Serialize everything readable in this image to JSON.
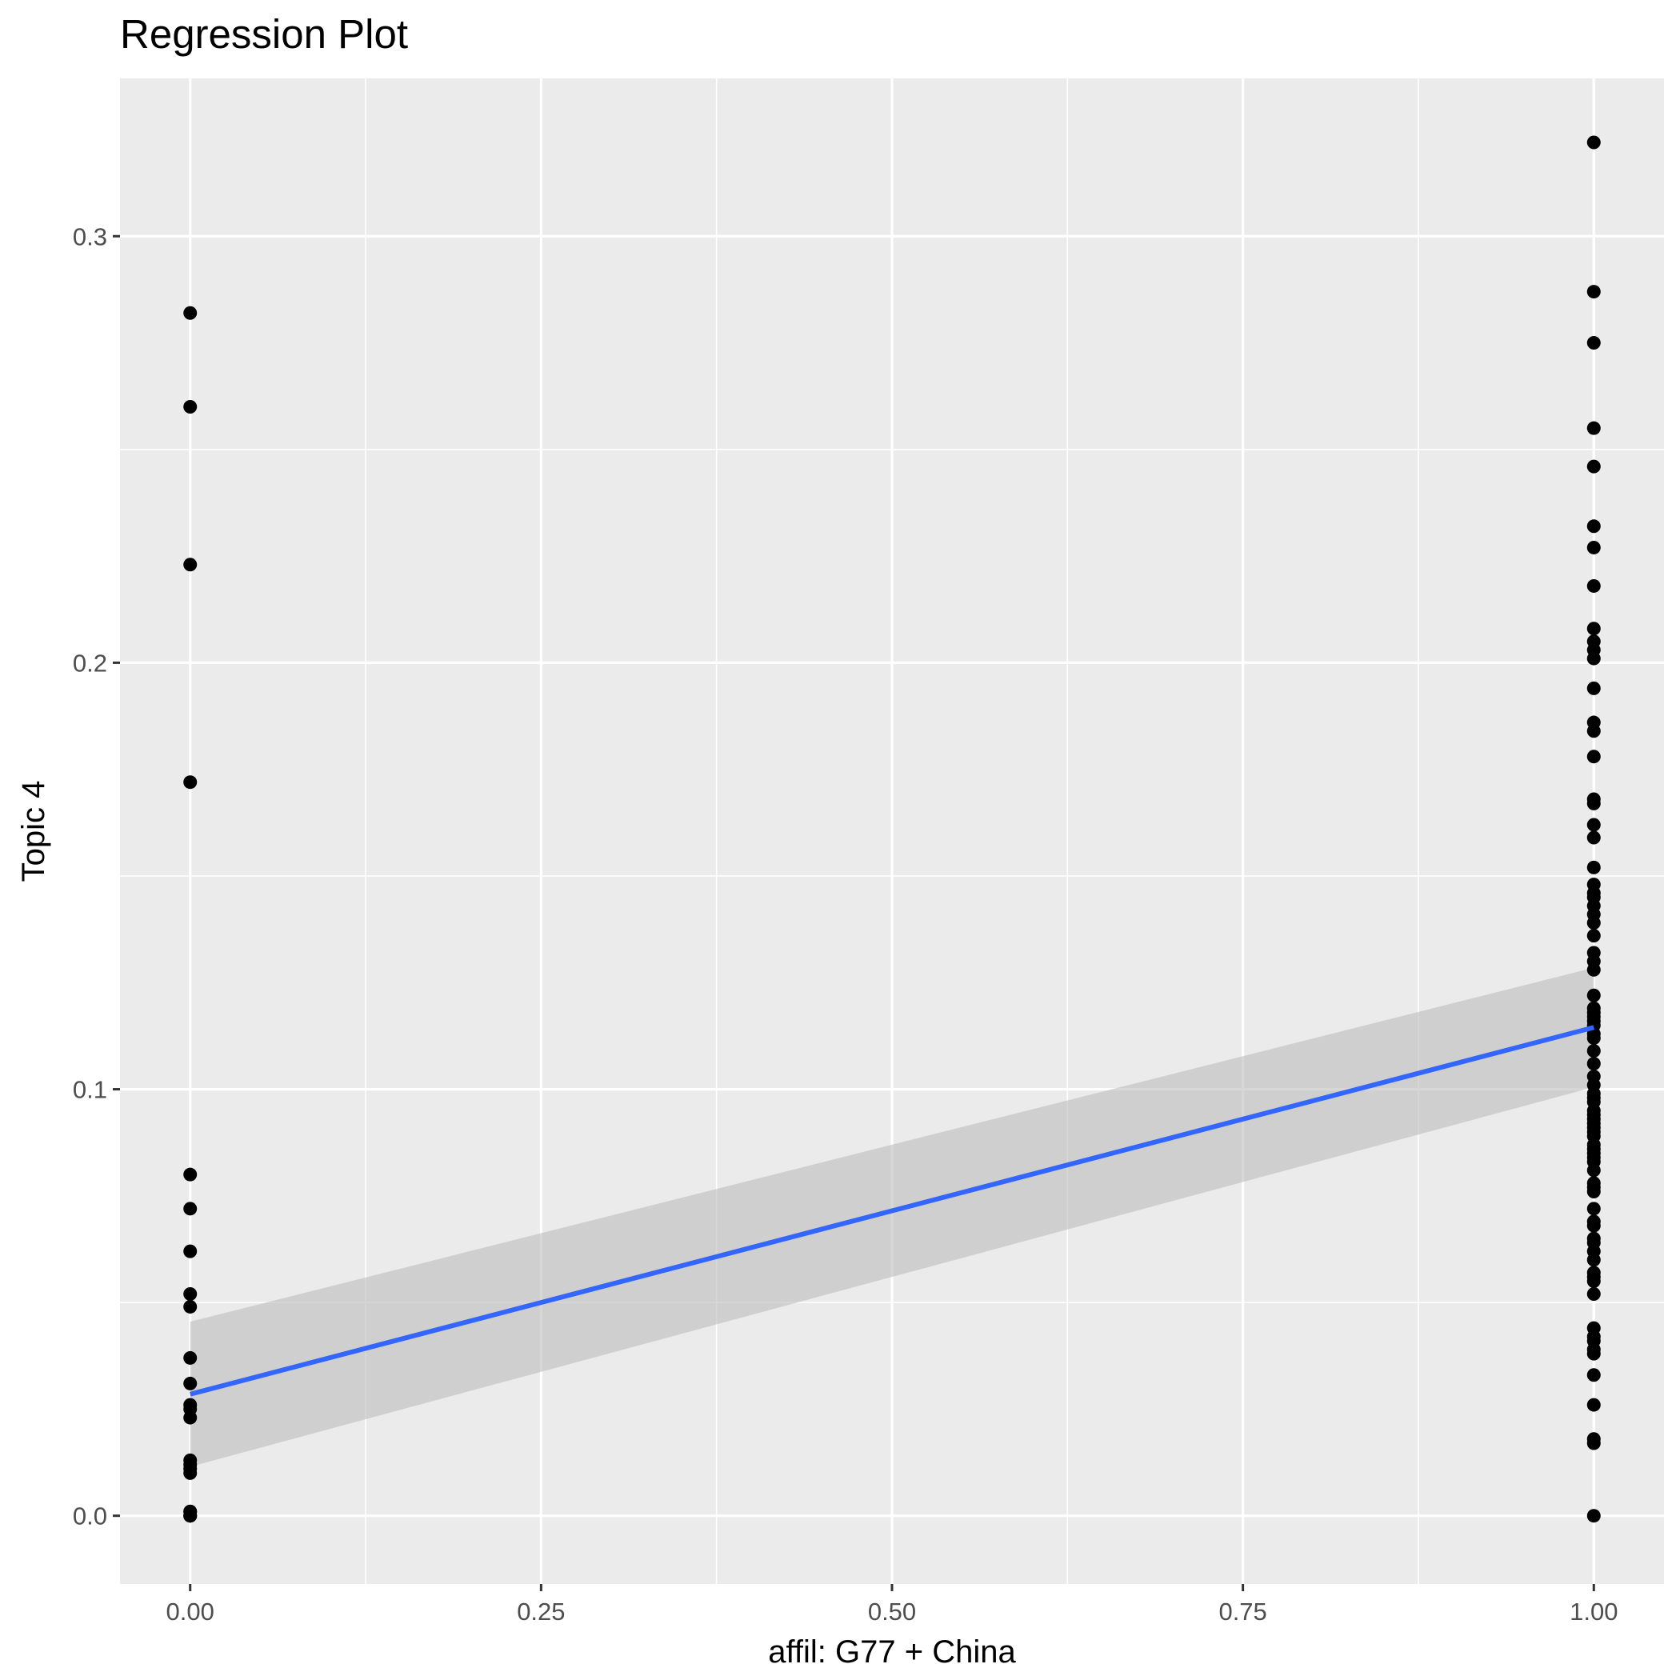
{
  "chart_data": {
    "type": "scatter",
    "title": "Regression Plot",
    "xlabel": "affil: G77 + China",
    "ylabel": "Topic 4",
    "xlim": [
      -0.05,
      1.05
    ],
    "ylim": [
      -0.016,
      0.337
    ],
    "x_ticks": [
      0.0,
      0.25,
      0.5,
      0.75,
      1.0
    ],
    "x_tick_labels": [
      "0.00",
      "0.25",
      "0.50",
      "0.75",
      "1.00"
    ],
    "y_ticks": [
      0.0,
      0.1,
      0.2,
      0.3
    ],
    "y_tick_labels": [
      "0.0",
      "0.1",
      "0.2",
      "0.3"
    ],
    "grid": true,
    "legend": "none",
    "colors": {
      "panel": "#ebebeb",
      "grid": "#ffffff",
      "points": "#000000",
      "fit_line": "#3366ff",
      "confidence_band": "#bdbdbd"
    },
    "series": [
      {
        "x": [
          0,
          0,
          0,
          0,
          0,
          0,
          0,
          0,
          0,
          0,
          0,
          0,
          0,
          0,
          0,
          0,
          0,
          0,
          0,
          0,
          0,
          0,
          0
        ],
        "y": [
          0.282,
          0.26,
          0.223,
          0.172,
          0.08,
          0.072,
          0.062,
          0.052,
          0.049,
          0.037,
          0.031,
          0.026,
          0.025,
          0.023,
          0.013,
          0.012,
          0.011,
          0.01,
          0.001,
          0.001,
          0.0,
          0.0,
          0.0
        ]
      },
      {
        "x": [
          1,
          1,
          1,
          1,
          1,
          1,
          1,
          1,
          1,
          1,
          1,
          1,
          1,
          1,
          1,
          1,
          1,
          1,
          1,
          1,
          1,
          1,
          1,
          1,
          1,
          1,
          1,
          1,
          1,
          1,
          1,
          1,
          1,
          1,
          1,
          1,
          1,
          1,
          1,
          1,
          1,
          1,
          1,
          1,
          1,
          1,
          1,
          1,
          1,
          1,
          1,
          1,
          1,
          1,
          1,
          1,
          1,
          1,
          1,
          1,
          1,
          1,
          1,
          1,
          1,
          1,
          1,
          1,
          1,
          1,
          1,
          1,
          1,
          1,
          1,
          1,
          1,
          1,
          1,
          1,
          1,
          1,
          1
        ],
        "y": [
          0.322,
          0.287,
          0.275,
          0.255,
          0.246,
          0.232,
          0.227,
          0.218,
          0.208,
          0.205,
          0.203,
          0.201,
          0.194,
          0.186,
          0.184,
          0.178,
          0.168,
          0.167,
          0.162,
          0.159,
          0.152,
          0.148,
          0.145,
          0.143,
          0.141,
          0.139,
          0.136,
          0.132,
          0.13,
          0.128,
          0.122,
          0.119,
          0.117,
          0.116,
          0.115,
          0.113,
          0.112,
          0.109,
          0.103,
          0.101,
          0.099,
          0.097,
          0.095,
          0.093,
          0.092,
          0.091,
          0.09,
          0.089,
          0.087,
          0.085,
          0.083,
          0.081,
          0.078,
          0.076,
          0.072,
          0.068,
          0.065,
          0.064,
          0.062,
          0.06,
          0.057,
          0.056,
          0.055,
          0.052,
          0.044,
          0.042,
          0.041,
          0.039,
          0.038,
          0.033,
          0.026,
          0.018,
          0.017,
          0.0,
          0.086,
          0.094,
          0.098,
          0.084,
          0.106,
          0.118,
          0.146,
          0.069,
          0.077
        ]
      }
    ],
    "fit": {
      "x": [
        0.0,
        1.0
      ],
      "y": [
        0.0285,
        0.1145
      ],
      "ci_lower": [
        0.0115,
        0.1005
      ],
      "ci_upper": [
        0.0455,
        0.1285
      ]
    }
  }
}
